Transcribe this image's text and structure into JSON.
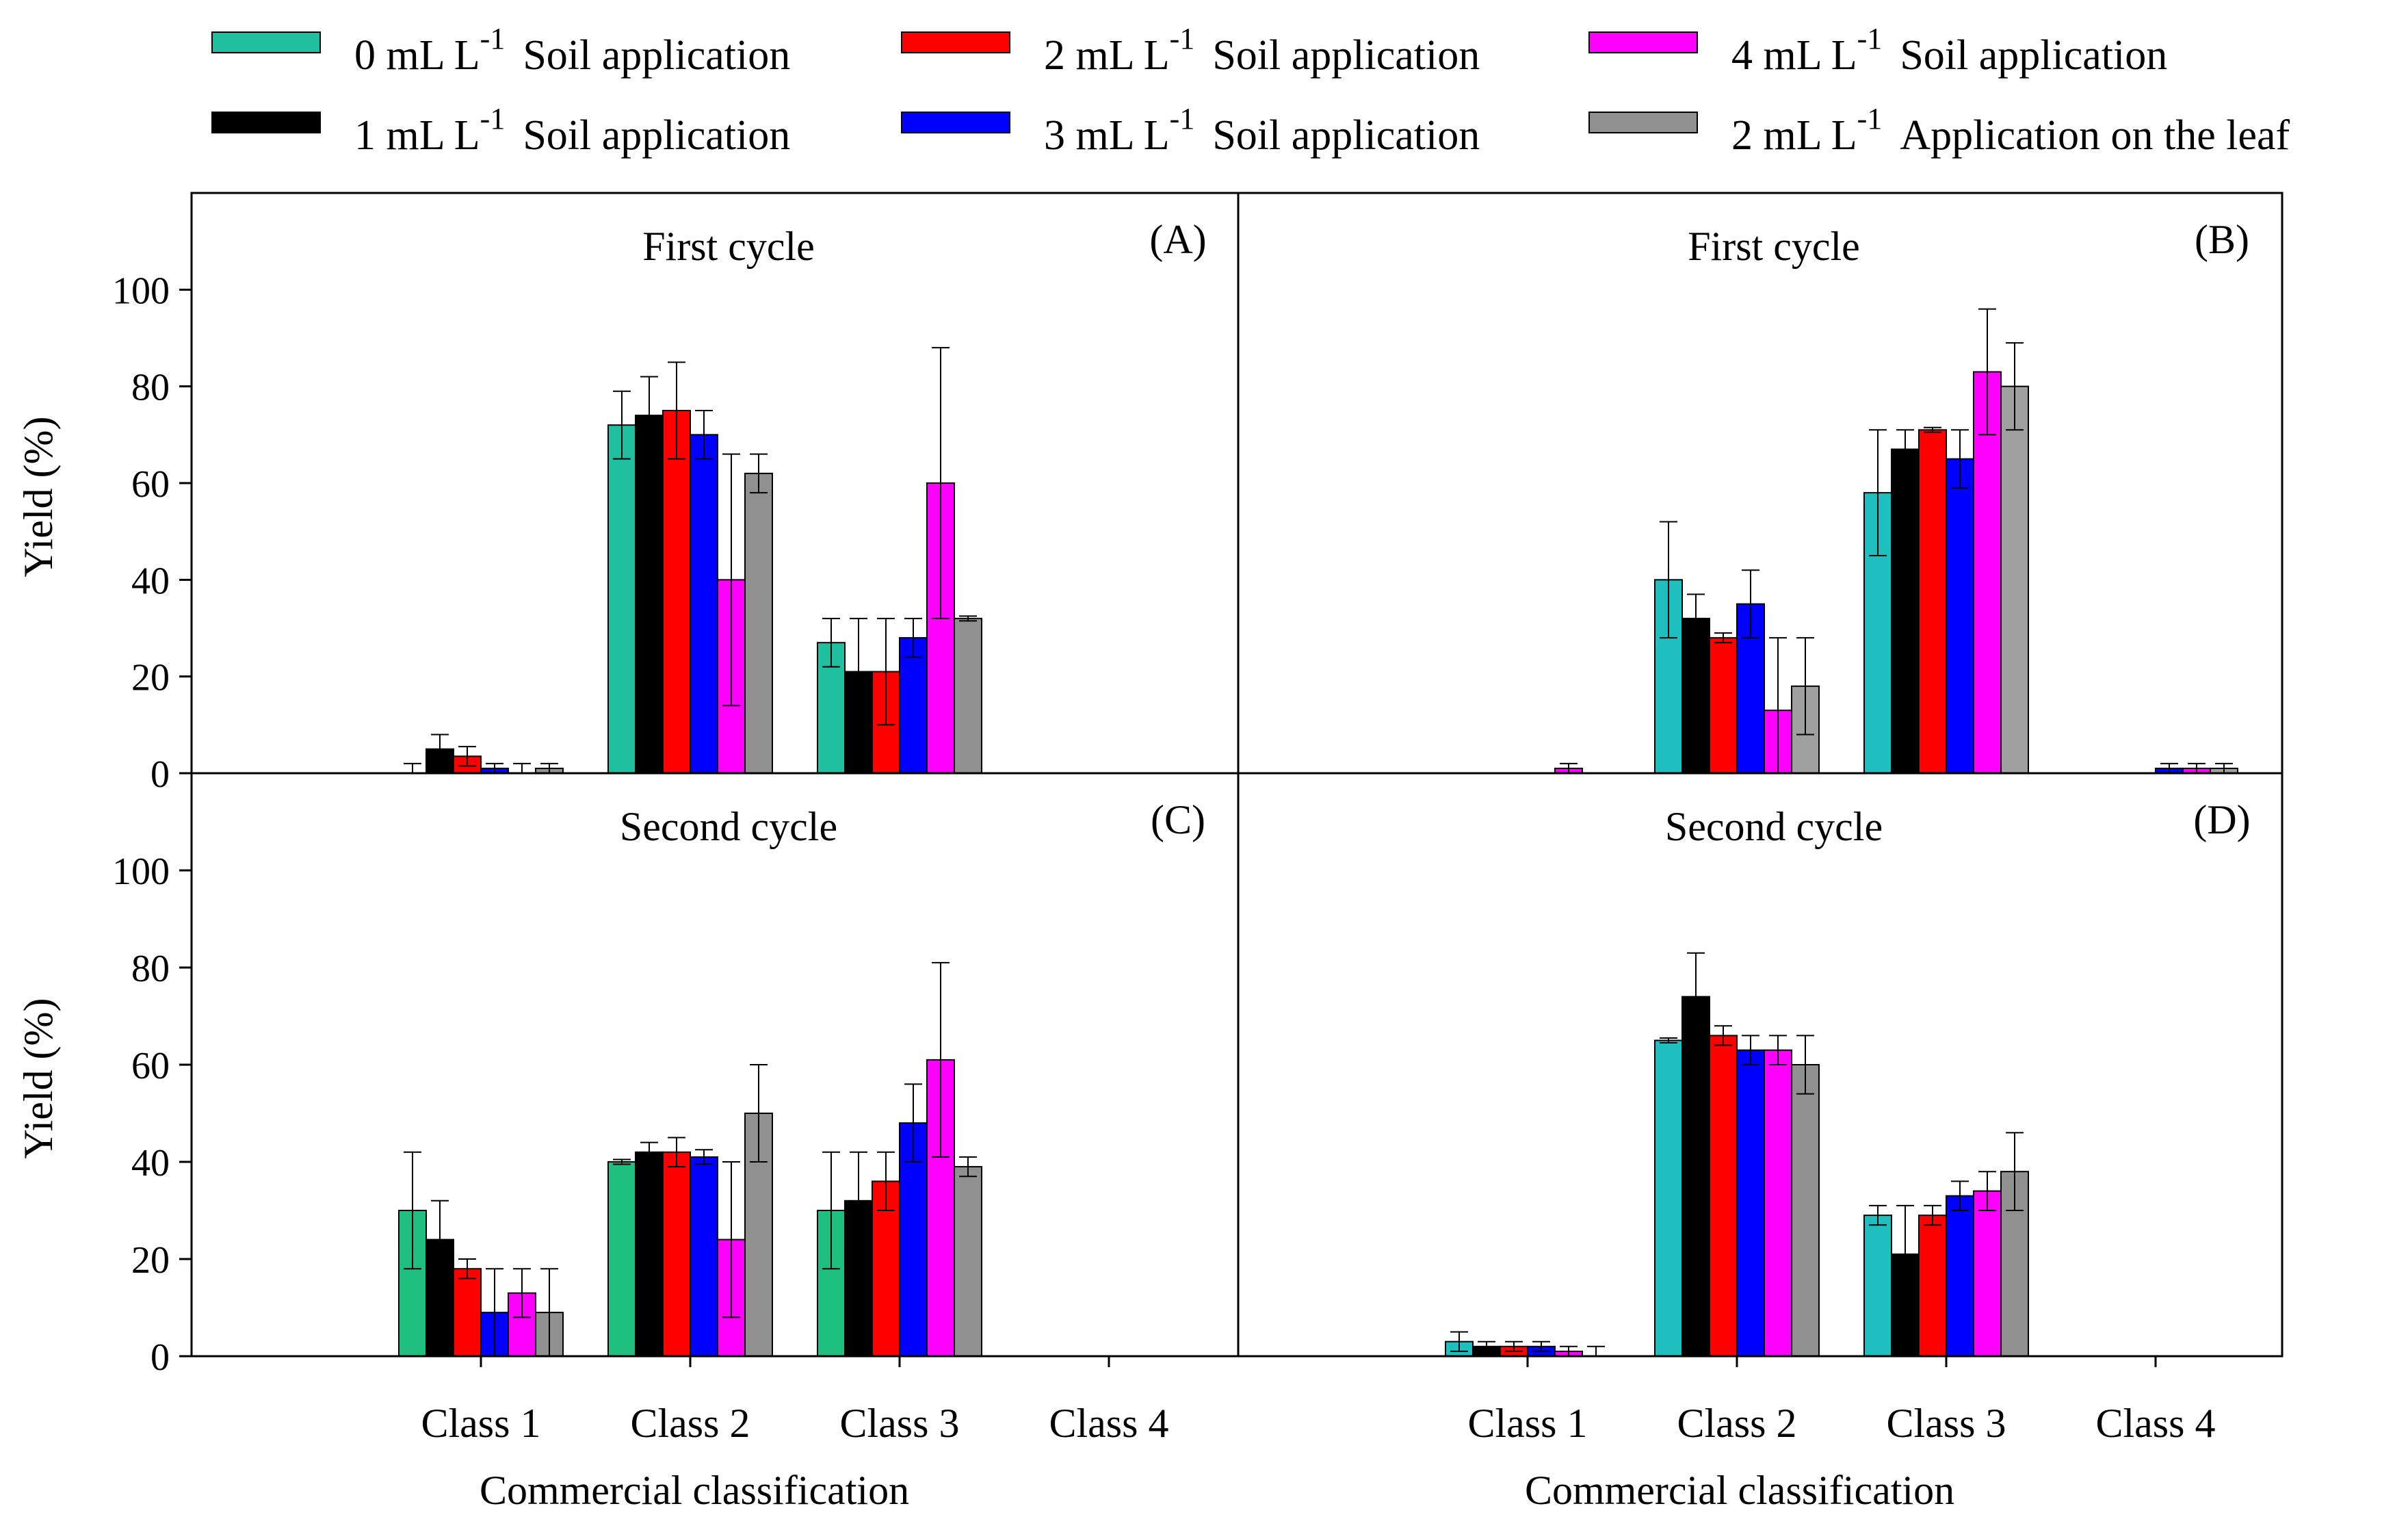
{
  "legend": [
    {
      "dose": "0 mL L",
      "exp": "-1",
      "method": "Soil application",
      "color": "#1fbf9f"
    },
    {
      "dose": "1 mL L",
      "exp": "-1",
      "method": "Soil application",
      "color": "#000000"
    },
    {
      "dose": "2 mL L",
      "exp": "-1",
      "method": "Soil application",
      "color": "#ff0000"
    },
    {
      "dose": "3 mL L",
      "exp": "-1",
      "method": "Soil application",
      "color": "#0000ff"
    },
    {
      "dose": "4 mL L",
      "exp": "-1",
      "method": "Soil application",
      "color": "#ff00ff"
    },
    {
      "dose": "2 mL L",
      "exp": "-1",
      "method": "Application on the leaf",
      "color": "#909090"
    }
  ],
  "chart_data": [
    {
      "type": "bar",
      "panel": "(A)",
      "title": "First cycle",
      "ylabel": "Yield (%)",
      "xlabel": "",
      "ylim": [
        0,
        120
      ],
      "yticks": [
        "0",
        "20",
        "40",
        "60",
        "80",
        "100"
      ],
      "categories": [
        "Class 1",
        "Class 2",
        "Class 3",
        "Class 4"
      ],
      "colors": [
        "#1fbf9f",
        "#000000",
        "#ff0000",
        "#0000ff",
        "#ff00ff",
        "#909090"
      ],
      "series": [
        {
          "name": "0 mL L-1 Soil application",
          "values": [
            0,
            72,
            27,
            0
          ],
          "errors": [
            2,
            7,
            5,
            0
          ]
        },
        {
          "name": "1 mL L-1 Soil application",
          "values": [
            5,
            74,
            21,
            0
          ],
          "errors": [
            3,
            8,
            11,
            0
          ]
        },
        {
          "name": "2 mL L-1 Soil application",
          "values": [
            3.5,
            75,
            21,
            0
          ],
          "errors": [
            2,
            10,
            11,
            0
          ]
        },
        {
          "name": "3 mL L-1 Soil application",
          "values": [
            1,
            70,
            28,
            0
          ],
          "errors": [
            1,
            5,
            4,
            0
          ]
        },
        {
          "name": "4 mL L-1 Soil application",
          "values": [
            0,
            40,
            60,
            0
          ],
          "errors": [
            2,
            26,
            28,
            0
          ]
        },
        {
          "name": "2 mL L-1 Application on the leaf",
          "values": [
            1,
            62,
            32,
            0
          ],
          "errors": [
            1,
            4,
            0.5,
            0
          ]
        }
      ]
    },
    {
      "type": "bar",
      "panel": "(B)",
      "title": "First cycle",
      "ylabel": "",
      "xlabel": "",
      "ylim": [
        0,
        120
      ],
      "categories": [
        "Class 1",
        "Class 2",
        "Class 3",
        "Class 4"
      ],
      "colors": [
        "#1fbfbf",
        "#000000",
        "#ff0000",
        "#0000ff",
        "#ff00ff",
        "#a0a0a0"
      ],
      "series": [
        {
          "name": "0 mL L-1 Soil application",
          "values": [
            0,
            40,
            58,
            0
          ],
          "errors": [
            0,
            12,
            13,
            0
          ]
        },
        {
          "name": "1 mL L-1 Soil application",
          "values": [
            0,
            32,
            67,
            0
          ],
          "errors": [
            0,
            5,
            4,
            0
          ]
        },
        {
          "name": "2 mL L-1 Soil application",
          "values": [
            0,
            28,
            71,
            0
          ],
          "errors": [
            0,
            1,
            0.5,
            0
          ]
        },
        {
          "name": "3 mL L-1 Soil application",
          "values": [
            0,
            35,
            65,
            1
          ],
          "errors": [
            0,
            7,
            6,
            1
          ]
        },
        {
          "name": "4 mL L-1 Soil application",
          "values": [
            1,
            13,
            83,
            1
          ],
          "errors": [
            1,
            15,
            13,
            1
          ]
        },
        {
          "name": "2 mL L-1 Application on the leaf",
          "values": [
            0,
            18,
            80,
            1
          ],
          "errors": [
            0,
            10,
            9,
            1
          ]
        }
      ]
    },
    {
      "type": "bar",
      "panel": "(C)",
      "title": "Second cycle",
      "ylabel": "Yield (%)",
      "xlabel": "Commercial classification",
      "ylim": [
        0,
        120
      ],
      "yticks": [
        "0",
        "20",
        "40",
        "60",
        "80",
        "100"
      ],
      "categories": [
        "Class 1",
        "Class 2",
        "Class 3",
        "Class 4"
      ],
      "colors": [
        "#1fbf7f",
        "#000000",
        "#ff0000",
        "#0000ff",
        "#ff00ff",
        "#909090"
      ],
      "series": [
        {
          "name": "0 mL L-1 Soil application",
          "values": [
            30,
            40,
            30,
            0
          ],
          "errors": [
            12,
            0.5,
            12,
            0
          ]
        },
        {
          "name": "1 mL L-1 Soil application",
          "values": [
            24,
            42,
            32,
            0
          ],
          "errors": [
            8,
            2,
            10,
            0
          ]
        },
        {
          "name": "2 mL L-1 Soil application",
          "values": [
            18,
            42,
            36,
            0
          ],
          "errors": [
            2,
            3,
            6,
            0
          ]
        },
        {
          "name": "3 mL L-1 Soil application",
          "values": [
            9,
            41,
            48,
            0
          ],
          "errors": [
            9,
            1.5,
            8,
            0
          ]
        },
        {
          "name": "4 mL L-1 Soil application",
          "values": [
            13,
            24,
            61,
            0
          ],
          "errors": [
            5,
            16,
            20,
            0
          ]
        },
        {
          "name": "2 mL L-1 Application on the leaf",
          "values": [
            9,
            50,
            39,
            0
          ],
          "errors": [
            9,
            10,
            2,
            0
          ]
        }
      ]
    },
    {
      "type": "bar",
      "panel": "(D)",
      "title": "Second cycle",
      "ylabel": "",
      "xlabel": "Commercial classification",
      "ylim": [
        0,
        120
      ],
      "categories": [
        "Class 1",
        "Class 2",
        "Class 3",
        "Class 4"
      ],
      "colors": [
        "#1fbfbf",
        "#000000",
        "#ff0000",
        "#0000ff",
        "#ff00ff",
        "#909090"
      ],
      "series": [
        {
          "name": "0 mL L-1 Soil application",
          "values": [
            3,
            65,
            29,
            0
          ],
          "errors": [
            2,
            0.5,
            2,
            0
          ]
        },
        {
          "name": "1 mL L-1 Soil application",
          "values": [
            2,
            74,
            21,
            0
          ],
          "errors": [
            1,
            9,
            10,
            0
          ]
        },
        {
          "name": "2 mL L-1 Soil application",
          "values": [
            2,
            66,
            29,
            0
          ],
          "errors": [
            1,
            2,
            2,
            0
          ]
        },
        {
          "name": "3 mL L-1 Soil application",
          "values": [
            2,
            63,
            33,
            0
          ],
          "errors": [
            1,
            3,
            3,
            0
          ]
        },
        {
          "name": "4 mL L-1 Soil application",
          "values": [
            1,
            63,
            34,
            0
          ],
          "errors": [
            1,
            3,
            4,
            0
          ]
        },
        {
          "name": "2 mL L-1 Application on the leaf",
          "values": [
            0,
            60,
            38,
            0
          ],
          "errors": [
            2,
            6,
            8,
            0
          ]
        }
      ]
    }
  ]
}
